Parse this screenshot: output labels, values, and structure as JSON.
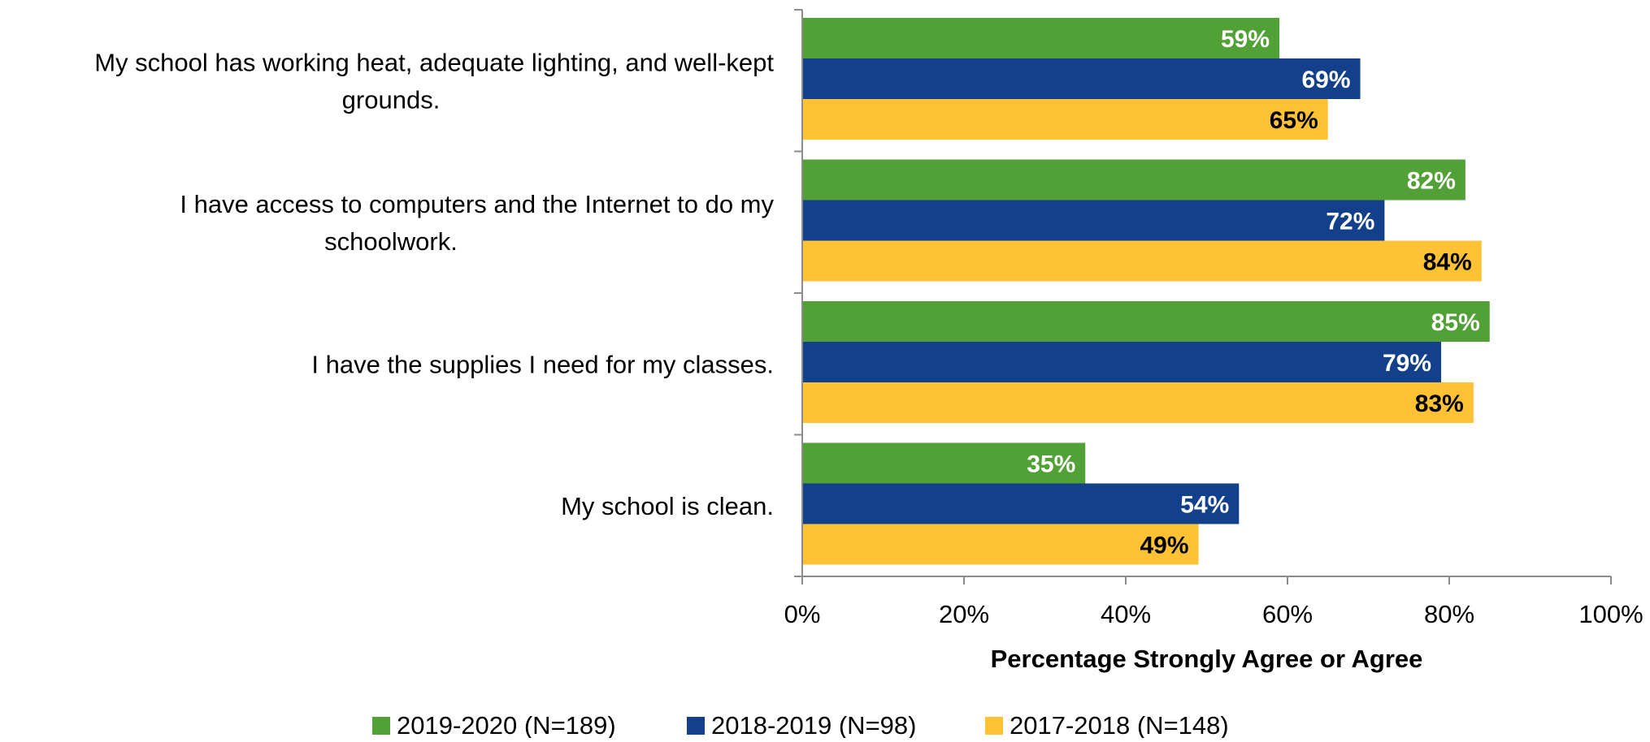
{
  "chart_data": {
    "type": "bar",
    "orientation": "horizontal",
    "categories": [
      [
        "My school has working heat, adequate lighting, and well-kept",
        "grounds."
      ],
      [
        "I have access to computers and the Internet to do my",
        "schoolwork."
      ],
      [
        "I have the supplies I need for my classes."
      ],
      [
        "My school is clean."
      ]
    ],
    "series": [
      {
        "name": "2019-2020 (N=189)",
        "color": "#52A136",
        "label_color": "#ffffff",
        "values": [
          59,
          82,
          85,
          35
        ]
      },
      {
        "name": "2018-2019 (N=98)",
        "color": "#13408A",
        "label_color": "#ffffff",
        "values": [
          69,
          72,
          79,
          54
        ]
      },
      {
        "name": "2017-2018 (N=148)",
        "color": "#FFC234",
        "label_color": "#000000",
        "values": [
          65,
          84,
          83,
          49
        ]
      }
    ],
    "value_suffix": "%",
    "xlabel": "Percentage Strongly Agree or Agree",
    "xlim": [
      0,
      100
    ],
    "xticks": [
      "0%",
      "20%",
      "40%",
      "60%",
      "80%",
      "100%"
    ],
    "grid": false,
    "legend_position": "bottom"
  }
}
